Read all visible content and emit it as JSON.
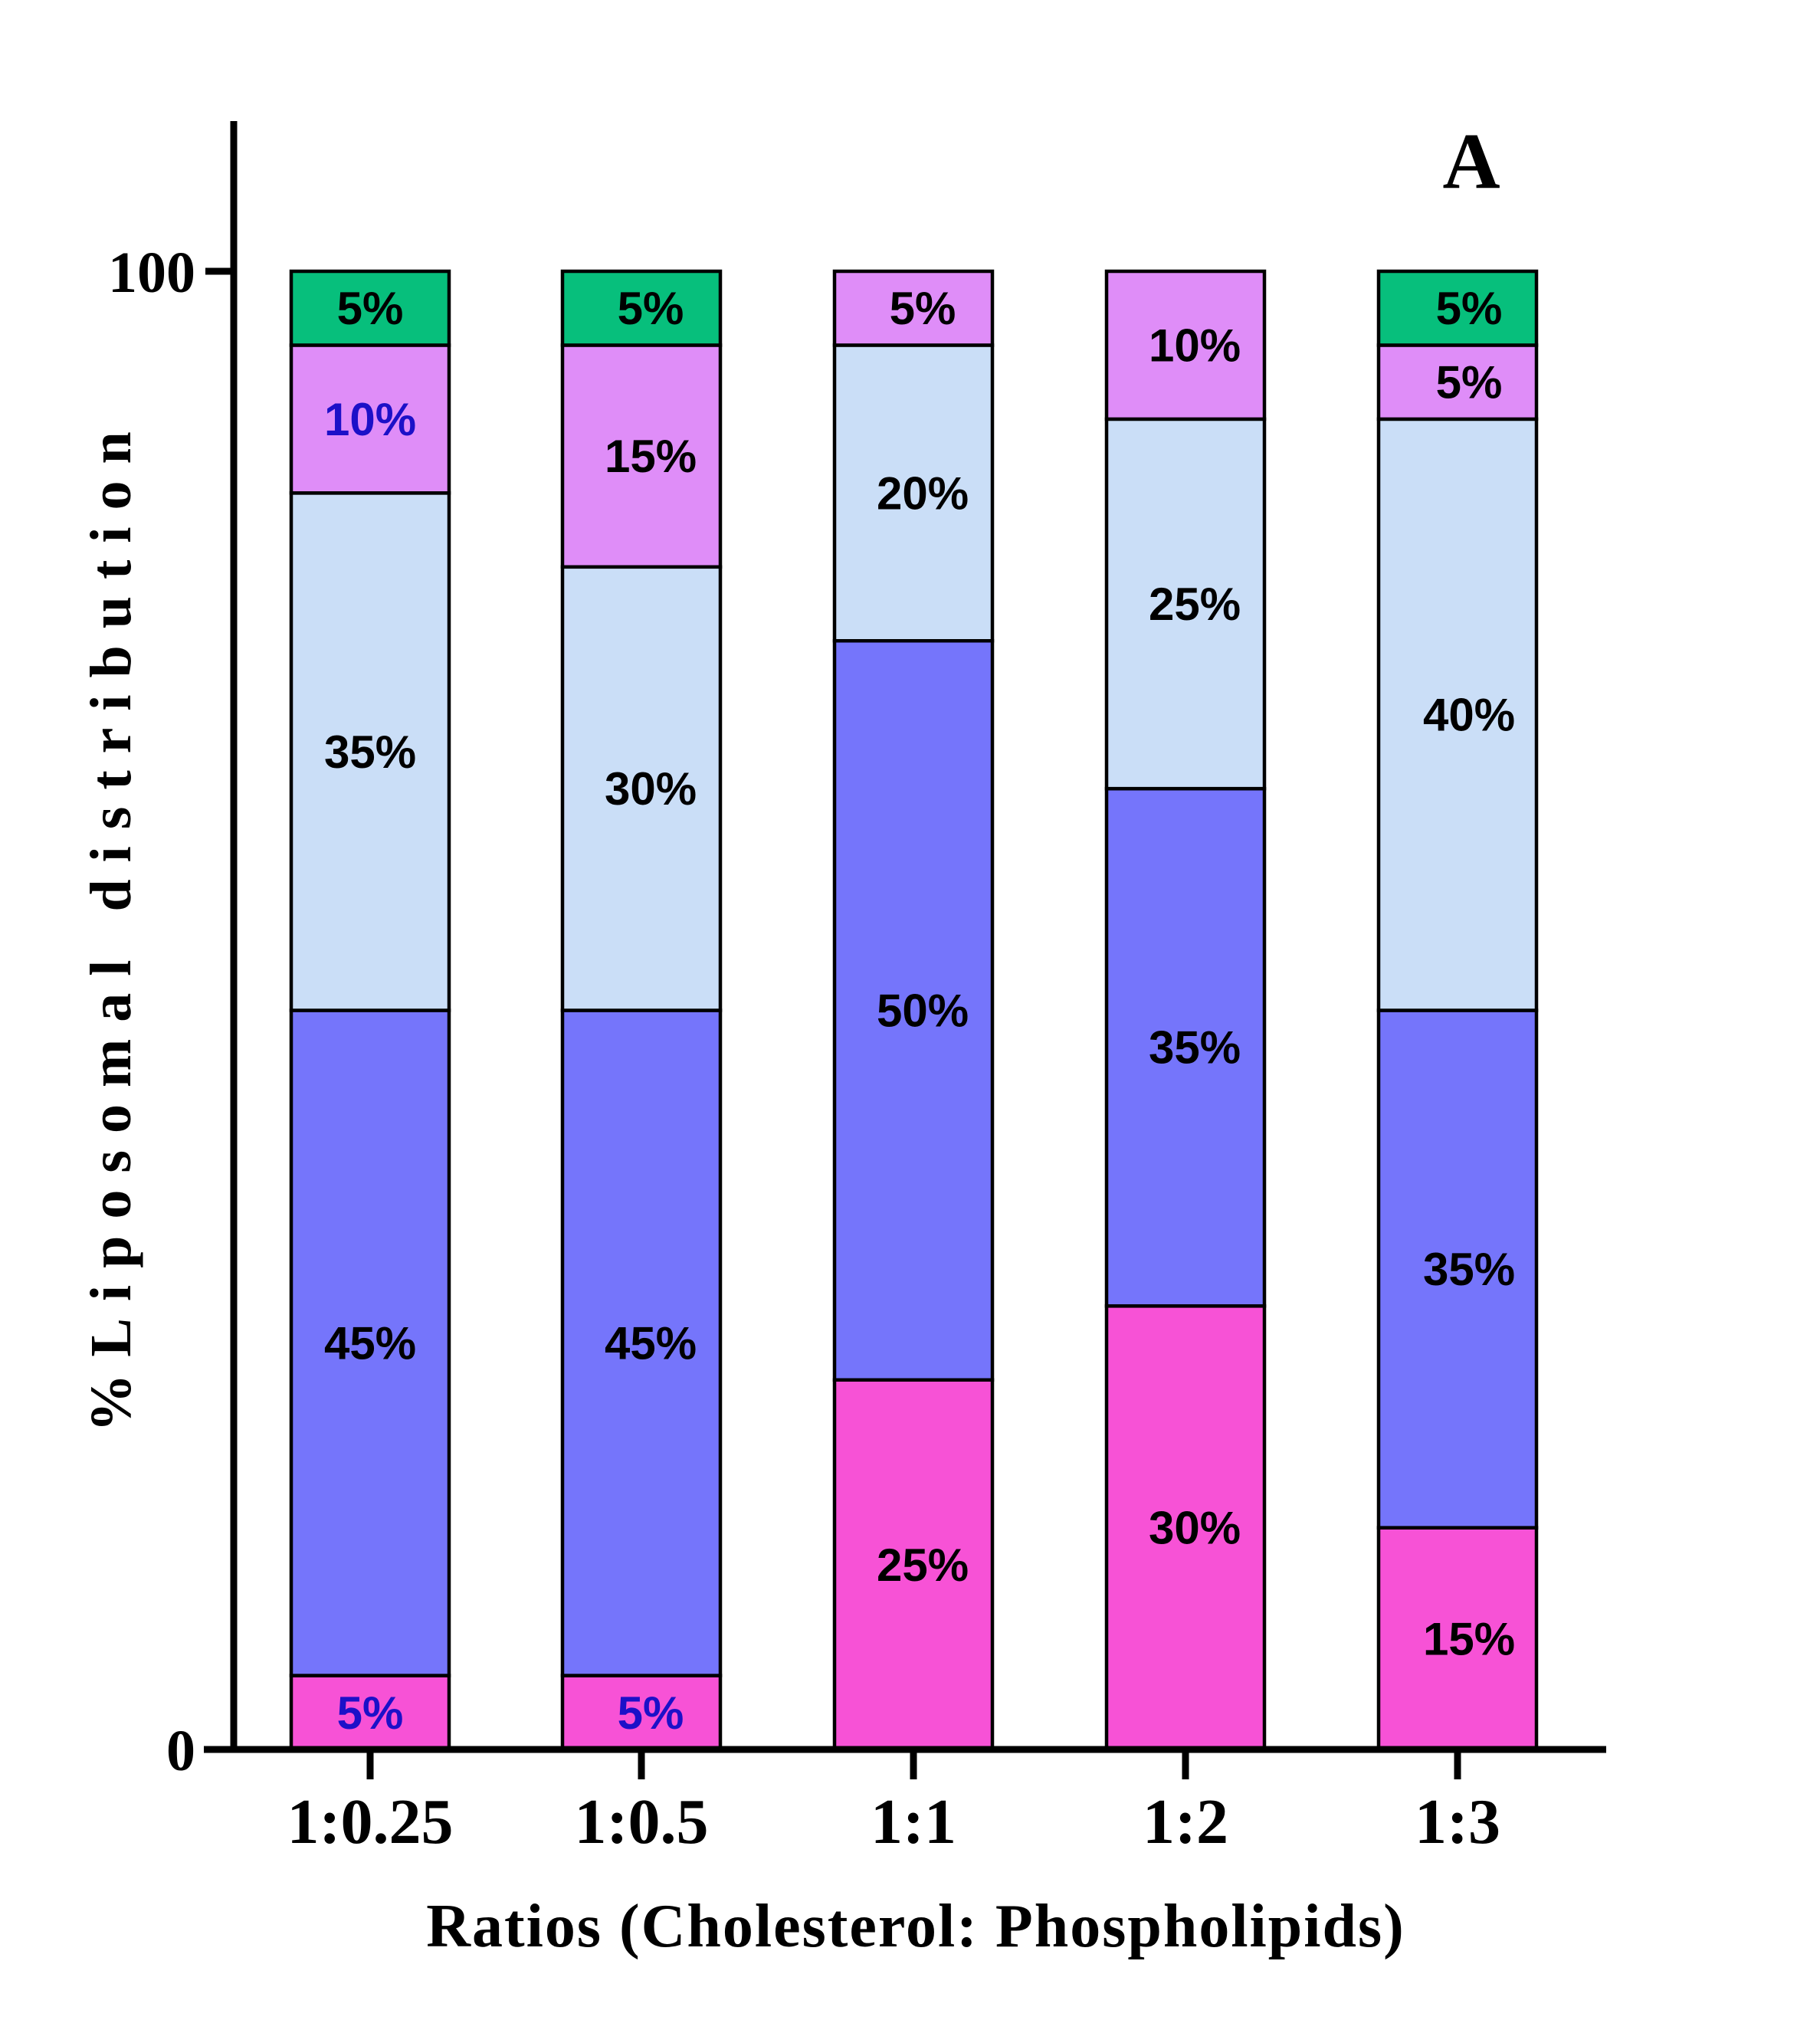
{
  "chart_data": {
    "type": "bar",
    "stacked": true,
    "panel_label": "A",
    "xlabel": "Ratios (Cholesterol: Phospholipids)",
    "ylabel": "%Liposomal distribution",
    "ylim": [
      0,
      100
    ],
    "yticks": [
      "0",
      "100"
    ],
    "grid": false,
    "legend": "none",
    "categories": [
      "1:0.25",
      "1:0.5",
      "1:1",
      "1:2",
      "1:3"
    ],
    "series": [
      {
        "color": "#f752d6",
        "values": [
          5,
          5,
          25,
          30,
          15
        ],
        "labels": [
          "5%",
          "5%",
          "25%",
          "30%",
          "15%"
        ],
        "label_colors": [
          "#1c10c8",
          "#1c10c8",
          "#000000",
          "#000000",
          "#000000"
        ]
      },
      {
        "color": "#7575fb",
        "values": [
          45,
          45,
          50,
          35,
          35
        ],
        "labels": [
          "45%",
          "45%",
          "50%",
          "35%",
          "35%"
        ],
        "label_colors": [
          "#000000",
          "#000000",
          "#000000",
          "#000000",
          "#000000"
        ]
      },
      {
        "color": "#cadef7",
        "values": [
          35,
          30,
          20,
          25,
          40
        ],
        "labels": [
          "35%",
          "30%",
          "20%",
          "25%",
          "40%"
        ],
        "label_colors": [
          "#000000",
          "#000000",
          "#000000",
          "#000000",
          "#000000"
        ]
      },
      {
        "color": "#df8df8",
        "values": [
          10,
          15,
          5,
          10,
          5
        ],
        "labels": [
          "10%",
          "15%",
          "5%",
          "10%",
          "5%"
        ],
        "label_colors": [
          "#1c10c8",
          "#000000",
          "#000000",
          "#000000",
          "#000000"
        ]
      },
      {
        "color": "#07bf7c",
        "values": [
          5,
          5,
          0,
          0,
          5
        ],
        "labels": [
          "5%",
          "5%",
          "",
          "",
          "5%"
        ],
        "label_colors": [
          "#000000",
          "#000000",
          "#000000",
          "#000000",
          "#000000"
        ]
      }
    ]
  }
}
